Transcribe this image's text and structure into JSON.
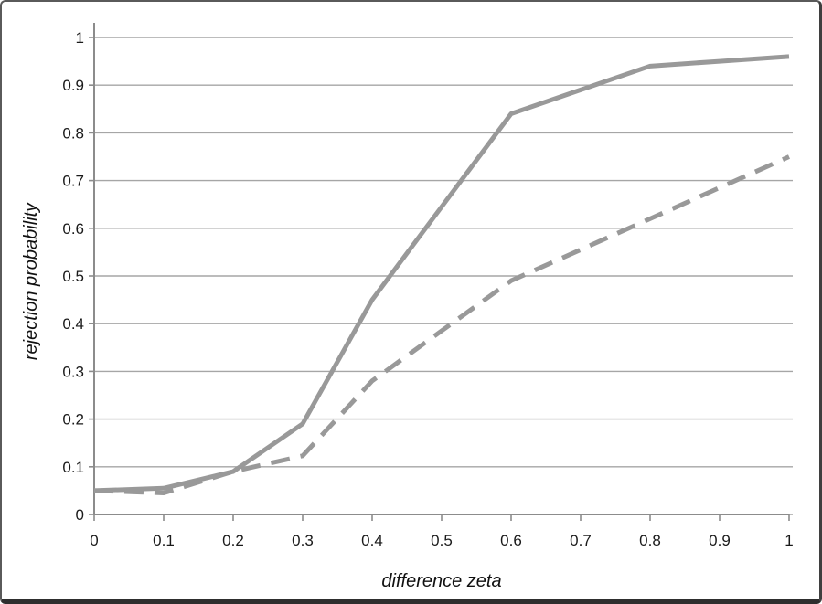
{
  "chart_data": {
    "type": "line",
    "title": "",
    "xlabel": "difference zeta",
    "ylabel": "rejection probability",
    "x": [
      0,
      0.1,
      0.2,
      0.3,
      0.4,
      0.5,
      0.6,
      0.7,
      0.8,
      0.9,
      1.0
    ],
    "series": [
      {
        "name": "solid-line",
        "style": "solid",
        "values": [
          0.05,
          0.055,
          0.09,
          0.19,
          0.45,
          0.645,
          0.84,
          0.89,
          0.94,
          0.95,
          0.96
        ]
      },
      {
        "name": "dashed-line",
        "style": "dashed",
        "values": [
          0.05,
          0.045,
          0.09,
          0.123,
          0.28,
          0.385,
          0.49,
          0.555,
          0.62,
          0.685,
          0.75
        ]
      }
    ],
    "xlim": [
      0,
      1
    ],
    "ylim": [
      0,
      1
    ],
    "x_ticks": [
      "0",
      "0.1",
      "0.2",
      "0.3",
      "0.4",
      "0.5",
      "0.6",
      "0.7",
      "0.8",
      "0.9",
      "1"
    ],
    "y_ticks": [
      "0",
      "0.1",
      "0.2",
      "0.3",
      "0.4",
      "0.5",
      "0.6",
      "0.7",
      "0.8",
      "0.9",
      "1"
    ],
    "grid": "horizontal",
    "legend": "none",
    "colors": {
      "series": "#999999",
      "grid": "#a6a6a6",
      "axis": "#8c8c8c",
      "text": "#1a1a1a"
    }
  }
}
